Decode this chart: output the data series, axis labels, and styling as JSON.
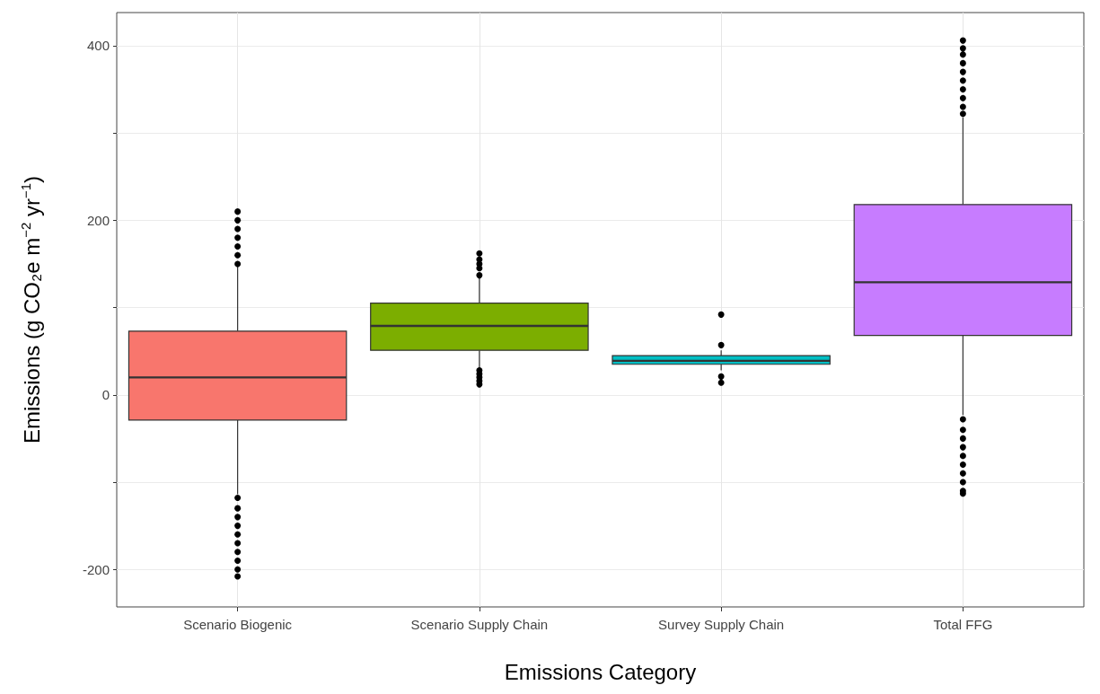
{
  "chart_data": {
    "type": "box",
    "xlabel": "Emissions Category",
    "ylabel": "Emissions (g CO₂e m$^{−2}$ yr$^{−1}$)",
    "categories": [
      "Scenario Biogenic",
      "Scenario Supply Chain",
      "Survey Supply Chain",
      "Total FFG"
    ],
    "colors": [
      "#f8766d",
      "#7cae00",
      "#00bfc4",
      "#c77cff"
    ],
    "boxes": [
      {
        "low": -114,
        "q1": -29,
        "median": 20,
        "q3": 73,
        "high": 148,
        "outliers": [
          150,
          160,
          170,
          180,
          190,
          200,
          210,
          -118,
          -130,
          -140,
          -150,
          -160,
          -170,
          -180,
          -190,
          -200,
          -208
        ]
      },
      {
        "low": 30,
        "q1": 51,
        "median": 79,
        "q3": 105,
        "high": 135,
        "outliers": [
          137,
          145,
          150,
          155,
          162,
          12,
          16,
          20,
          24,
          28
        ]
      },
      {
        "low": 28,
        "q1": 35,
        "median": 39,
        "q3": 45,
        "high": 51,
        "outliers": [
          57,
          92,
          21,
          14
        ]
      },
      {
        "low": -23,
        "q1": 68,
        "median": 129,
        "q3": 218,
        "high": 318,
        "outliers": [
          322,
          330,
          340,
          350,
          360,
          370,
          380,
          390,
          397,
          406,
          -28,
          -40,
          -50,
          -60,
          -70,
          -80,
          -90,
          -100,
          -110,
          -113
        ]
      }
    ],
    "ylim": [
      -243,
      438
    ],
    "yticks": [
      -200,
      {
        "value": -100,
        "label": null
      },
      0,
      {
        "value": 100,
        "label": null
      },
      200,
      {
        "value": 300,
        "label": null
      },
      400
    ],
    "grid": true
  }
}
